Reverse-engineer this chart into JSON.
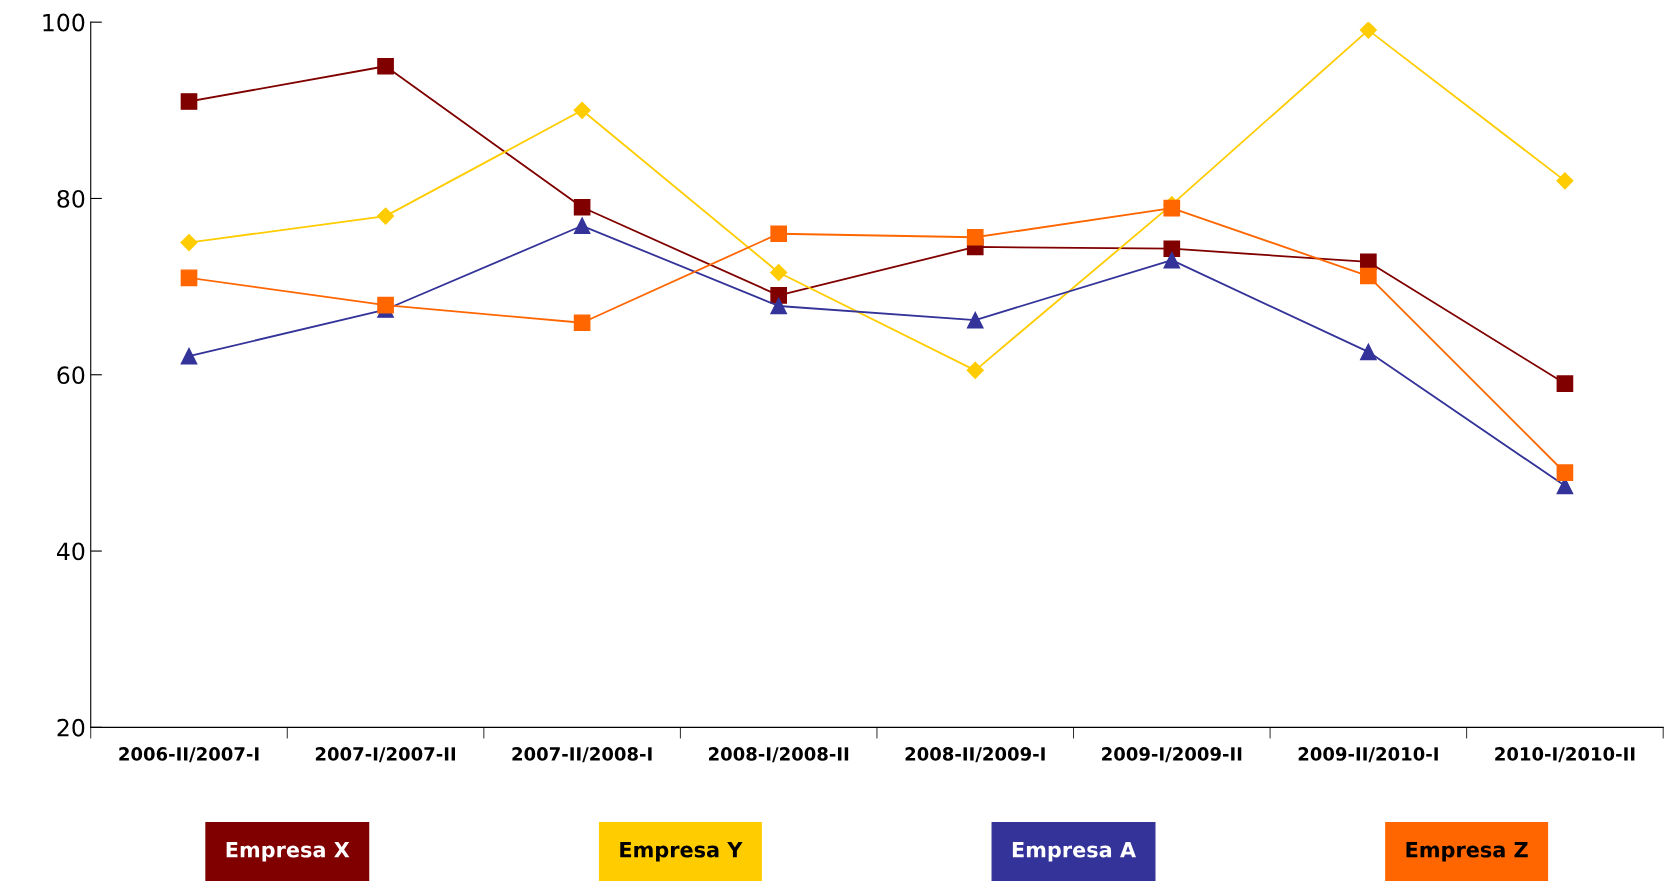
{
  "chart_data": {
    "type": "line",
    "categories": [
      "2006-II/2007-I",
      "2007-I/2007-II",
      "2007-II/2008-I",
      "2008-I/2008-II",
      "2008-II/2009-I",
      "2009-I/2009-II",
      "2009-II/2010-I",
      "2010-I/2010-II"
    ],
    "series": [
      {
        "name": "Empresa X",
        "color": "#800000",
        "marker": "square",
        "values": [
          91,
          95,
          79,
          69,
          74.5,
          74.3,
          72.8,
          59
        ]
      },
      {
        "name": "Empresa Y",
        "color": "#ffcc00",
        "marker": "diamond",
        "values": [
          75,
          78,
          90,
          71.6,
          60.5,
          79.3,
          99.1,
          82
        ]
      },
      {
        "name": "Empresa A",
        "color": "#333399",
        "marker": "triangle",
        "values": [
          62.1,
          67.4,
          76.9,
          67.8,
          66.2,
          73,
          62.6,
          47.4
        ]
      },
      {
        "name": "Empresa Z",
        "color": "#ff6600",
        "marker": "square",
        "values": [
          71,
          67.9,
          65.9,
          76,
          75.6,
          78.9,
          71.2,
          48.9
        ]
      }
    ],
    "ylim": [
      20,
      100
    ],
    "yticks": [
      20,
      40,
      60,
      80,
      100
    ],
    "grid": false,
    "legend": "bottom",
    "line_style": "solid"
  }
}
